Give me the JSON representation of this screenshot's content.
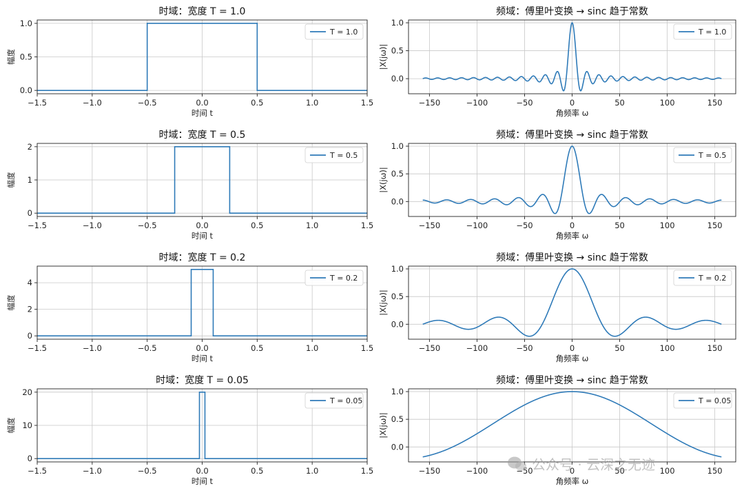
{
  "chart_data": [
    {
      "type": "line",
      "kind": "time",
      "T": 1.0,
      "title": "时域：宽度 T = 1.0",
      "xlabel": "时间 t",
      "ylabel": "幅度",
      "legend": "T = 1.0",
      "legend_loc": "top-right",
      "xlim": [
        -1.5,
        1.5
      ],
      "xticks": [
        -1.5,
        -1.0,
        -0.5,
        0.0,
        0.5,
        1.0,
        1.5
      ],
      "xtick_labels": [
        "−1.5",
        "−1.0",
        "−0.5",
        "0.0",
        "0.5",
        "1.0",
        "1.5"
      ],
      "ylim": [
        -0.05,
        1.05
      ],
      "yticks": [
        0.0,
        0.5,
        1.0
      ],
      "ytick_labels": [
        "0.0",
        "0.5",
        "1.0"
      ],
      "x": [
        -1.5,
        -0.5,
        -0.5,
        0.5,
        0.5,
        1.5
      ],
      "y": [
        0,
        0,
        1,
        1,
        0,
        0
      ],
      "grid": true
    },
    {
      "type": "line",
      "kind": "freq",
      "T": 1.0,
      "title": "频域：傅里叶变换 → sinc 趋于常数",
      "xlabel": "角频率 ω",
      "ylabel": "|X(jω)|",
      "legend": "T = 1.0",
      "legend_loc": "top-right",
      "xlim": [
        -172,
        172
      ],
      "xticks": [
        -150,
        -100,
        -50,
        0,
        50,
        100,
        150
      ],
      "xtick_labels": [
        "−150",
        "−100",
        "−50",
        "0",
        "50",
        "100",
        "150"
      ],
      "ylim": [
        -0.27,
        1.05
      ],
      "yticks": [
        0.0,
        0.5,
        1.0
      ],
      "ytick_labels": [
        "0.0",
        "0.5",
        "1.0"
      ],
      "omega_range": [
        -157,
        157
      ],
      "function": "sin(ωT/2)/(ωT/2)",
      "grid": true
    },
    {
      "type": "line",
      "kind": "time",
      "T": 0.5,
      "title": "时域：宽度 T = 0.5",
      "xlabel": "时间 t",
      "ylabel": "幅度",
      "legend": "T = 0.5",
      "legend_loc": "top-right",
      "xlim": [
        -1.5,
        1.5
      ],
      "xticks": [
        -1.5,
        -1.0,
        -0.5,
        0.0,
        0.5,
        1.0,
        1.5
      ],
      "xtick_labels": [
        "−1.5",
        "−1.0",
        "−0.5",
        "0.0",
        "0.5",
        "1.0",
        "1.5"
      ],
      "ylim": [
        -0.1,
        2.1
      ],
      "yticks": [
        0,
        1,
        2
      ],
      "ytick_labels": [
        "0",
        "1",
        "2"
      ],
      "x": [
        -1.5,
        -0.25,
        -0.25,
        0.25,
        0.25,
        1.5
      ],
      "y": [
        0,
        0,
        2,
        2,
        0,
        0
      ],
      "grid": true
    },
    {
      "type": "line",
      "kind": "freq",
      "T": 0.5,
      "title": "频域：傅里叶变换 → sinc 趋于常数",
      "xlabel": "角频率 ω",
      "ylabel": "|X(jω)|",
      "legend": "T = 0.5",
      "legend_loc": "top-right",
      "xlim": [
        -172,
        172
      ],
      "xticks": [
        -150,
        -100,
        -50,
        0,
        50,
        100,
        150
      ],
      "xtick_labels": [
        "−150",
        "−100",
        "−50",
        "0",
        "50",
        "100",
        "150"
      ],
      "ylim": [
        -0.27,
        1.05
      ],
      "yticks": [
        0.0,
        0.5,
        1.0
      ],
      "ytick_labels": [
        "0.0",
        "0.5",
        "1.0"
      ],
      "omega_range": [
        -157,
        157
      ],
      "function": "sin(ωT/2)/(ωT/2)",
      "grid": true
    },
    {
      "type": "line",
      "kind": "time",
      "T": 0.2,
      "title": "时域：宽度 T = 0.2",
      "xlabel": "时间 t",
      "ylabel": "幅度",
      "legend": "T = 0.2",
      "legend_loc": "top-right",
      "xlim": [
        -1.5,
        1.5
      ],
      "xticks": [
        -1.5,
        -1.0,
        -0.5,
        0.0,
        0.5,
        1.0,
        1.5
      ],
      "xtick_labels": [
        "−1.5",
        "−1.0",
        "−0.5",
        "0.0",
        "0.5",
        "1.0",
        "1.5"
      ],
      "ylim": [
        -0.25,
        5.25
      ],
      "yticks": [
        0,
        2,
        4
      ],
      "ytick_labels": [
        "0",
        "2",
        "4"
      ],
      "x": [
        -1.5,
        -0.1,
        -0.1,
        0.1,
        0.1,
        1.5
      ],
      "y": [
        0,
        0,
        5,
        5,
        0,
        0
      ],
      "grid": true
    },
    {
      "type": "line",
      "kind": "freq",
      "T": 0.2,
      "title": "频域：傅里叶变换 → sinc 趋于常数",
      "xlabel": "角频率 ω",
      "ylabel": "|X(jω)|",
      "legend": "T = 0.2",
      "legend_loc": "top-right",
      "xlim": [
        -172,
        172
      ],
      "xticks": [
        -150,
        -100,
        -50,
        0,
        50,
        100,
        150
      ],
      "xtick_labels": [
        "−150",
        "−100",
        "−50",
        "0",
        "50",
        "100",
        "150"
      ],
      "ylim": [
        -0.27,
        1.05
      ],
      "yticks": [
        0.0,
        0.5,
        1.0
      ],
      "ytick_labels": [
        "0.0",
        "0.5",
        "1.0"
      ],
      "omega_range": [
        -157,
        157
      ],
      "function": "sin(ωT/2)/(ωT/2)",
      "grid": true
    },
    {
      "type": "line",
      "kind": "time",
      "T": 0.05,
      "title": "时域：宽度 T = 0.05",
      "xlabel": "时间 t",
      "ylabel": "幅度",
      "legend": "T = 0.05",
      "legend_loc": "top-right",
      "xlim": [
        -1.5,
        1.5
      ],
      "xticks": [
        -1.5,
        -1.0,
        -0.5,
        0.0,
        0.5,
        1.0,
        1.5
      ],
      "xtick_labels": [
        "−1.5",
        "−1.0",
        "−0.5",
        "0.0",
        "0.5",
        "1.0",
        "1.5"
      ],
      "ylim": [
        -1,
        21
      ],
      "yticks": [
        0,
        10,
        20
      ],
      "ytick_labels": [
        "0",
        "10",
        "20"
      ],
      "x": [
        -1.5,
        -0.025,
        -0.025,
        0.025,
        0.025,
        1.5
      ],
      "y": [
        0,
        0,
        20,
        20,
        0,
        0
      ],
      "grid": true
    },
    {
      "type": "line",
      "kind": "freq",
      "T": 0.05,
      "title": "频域：傅里叶变换 → sinc 趋于常数",
      "xlabel": "角频率 ω",
      "ylabel": "|X(jω)|",
      "legend": "T = 0.05",
      "legend_loc": "top-right",
      "xlim": [
        -172,
        172
      ],
      "xticks": [
        -150,
        -100,
        -50,
        0,
        50,
        100,
        150
      ],
      "xtick_labels": [
        "−150",
        "−100",
        "−50",
        "0",
        "50",
        "100",
        "150"
      ],
      "ylim": [
        -0.27,
        1.05
      ],
      "yticks": [
        0.0,
        0.5,
        1.0
      ],
      "ytick_labels": [
        "0.0",
        "0.5",
        "1.0"
      ],
      "omega_range": [
        -157,
        157
      ],
      "function": "sin(ωT/2)/(ωT/2)",
      "grid": true
    }
  ],
  "watermark": "公众号 · 云深之无迹"
}
